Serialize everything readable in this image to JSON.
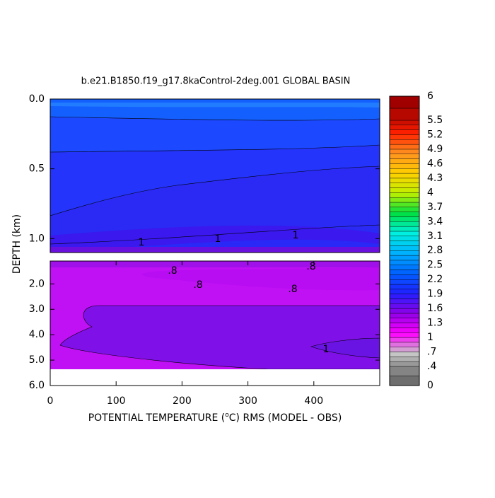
{
  "chart_data": {
    "type": "contour",
    "title": "b.e21.B1850.f19_g17.8kaControl-2deg.001 GLOBAL BASIN",
    "xlabel": [
      "POTENTIAL TEMPERATURE (",
      "o",
      "C) RMS (MODEL - OBS)"
    ],
    "ylabel": "DEPTH (km)",
    "xlim": [
      0,
      500
    ],
    "xticks": [
      0,
      100,
      200,
      300,
      400
    ],
    "panels": [
      {
        "ylim": [
          0,
          1.1
        ],
        "yticks": [
          {
            "value": 0,
            "label": "0.0"
          },
          {
            "value": 0.5,
            "label": "0.5"
          },
          {
            "value": 1,
            "label": "1.0"
          }
        ],
        "contour_labels": [
          "1",
          "1",
          "1"
        ]
      },
      {
        "ylim": [
          1.1,
          6
        ],
        "yticks": [
          {
            "value": 2,
            "label": "2.0"
          },
          {
            "value": 3,
            "label": "3.0"
          },
          {
            "value": 4,
            "label": "4.0"
          },
          {
            "value": 5,
            "label": "5.0"
          },
          {
            "value": 6,
            "label": "6.0"
          }
        ],
        "contour_labels": [
          ".8",
          ".8",
          ".8",
          ".8",
          "1"
        ]
      }
    ],
    "colorbar": {
      "ticks": [
        0,
        {
          "value": 0.4,
          "label": ".4"
        },
        {
          "value": 0.7,
          "label": ".7"
        },
        1,
        1.3,
        1.6,
        1.9,
        2.2,
        2.5,
        2.8,
        3.1,
        3.4,
        3.7,
        4,
        4.3,
        4.6,
        4.9,
        5.2,
        5.5,
        6
      ],
      "colors": [
        "#6e6e6e",
        "#c8c8c8",
        "#ff00ff",
        "#9000e8",
        "#2020ff",
        "#0060ff",
        "#00b0ff",
        "#00f0e0",
        "#00e040",
        "#c0f000",
        "#ffd000",
        "#ff9020",
        "#ff2000",
        "#a00000"
      ]
    }
  }
}
